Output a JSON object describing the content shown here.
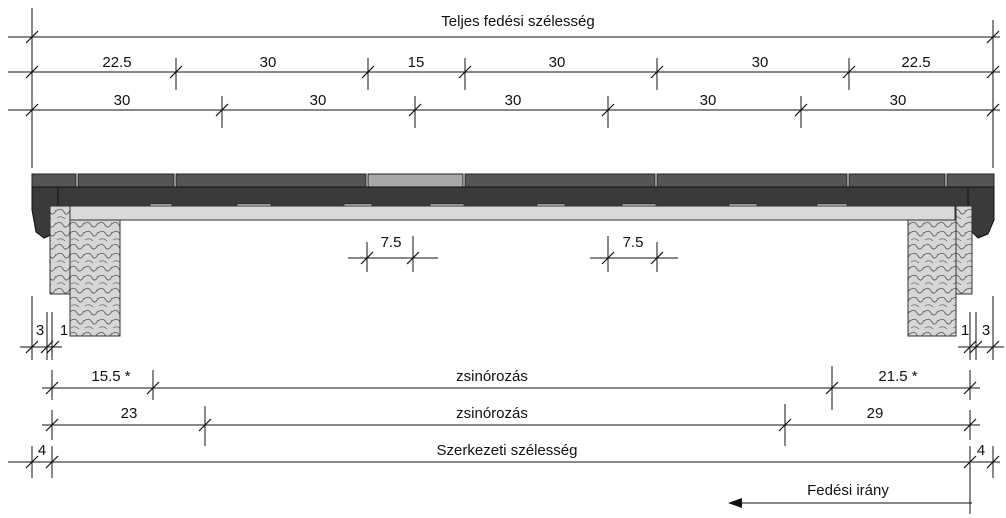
{
  "top": {
    "total_label": "Teljes fedési szélesség",
    "row1": [
      "22.5",
      "30",
      "15",
      "30",
      "30",
      "22.5"
    ],
    "row2": [
      "30",
      "30",
      "30",
      "30",
      "30"
    ]
  },
  "mid": {
    "gap_left": "7.5",
    "gap_right": "7.5"
  },
  "bottom": {
    "left_3": "3",
    "left_1": "1",
    "right_1": "1",
    "right_3": "3",
    "row_a": {
      "left": "15.5 *",
      "middle": "zsinórozás",
      "right": "21.5 *"
    },
    "row_b": {
      "left": "23",
      "middle": "zsinórozás",
      "right": "29"
    },
    "row_c": {
      "left": "4",
      "middle": "Szerkezeti szélesség",
      "right": "4"
    },
    "direction": "Fedési irány"
  }
}
